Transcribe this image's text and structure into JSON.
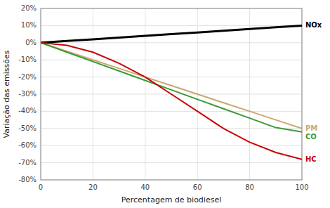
{
  "chart_data": {
    "type": "line",
    "xlabel": "Percentagem de biodiesel",
    "ylabel": "Variação das emissões",
    "x": [
      0,
      10,
      20,
      30,
      40,
      50,
      60,
      70,
      80,
      90,
      100
    ],
    "series": [
      {
        "name": "NOx",
        "color": "#000000",
        "values": [
          0,
          1,
          2,
          3,
          4,
          5,
          6,
          7,
          8,
          9,
          10
        ]
      },
      {
        "name": "PM",
        "color": "#C8A870",
        "values": [
          0,
          -5,
          -10,
          -15,
          -20,
          -25,
          -30,
          -35,
          -40,
          -45,
          -50
        ]
      },
      {
        "name": "CO",
        "color": "#3A9A3A",
        "values": [
          0,
          -5.5,
          -11,
          -16.5,
          -22,
          -27.5,
          -33,
          -38.5,
          -44,
          -49.5,
          -52
        ]
      },
      {
        "name": "HC",
        "color": "#CC0000",
        "values": [
          0,
          -1.5,
          -5.5,
          -12,
          -20,
          -30,
          -40,
          -50,
          -58,
          -64,
          -68
        ]
      }
    ],
    "xlim": [
      0,
      100
    ],
    "ylim": [
      -80,
      20
    ],
    "xticks": [
      0,
      20,
      40,
      60,
      80,
      100
    ],
    "yticks": [
      {
        "value": -80,
        "label": "-80%"
      },
      {
        "value": -70,
        "label": "-70%"
      },
      {
        "value": -60,
        "label": "-60%"
      },
      {
        "value": -50,
        "label": "-50%"
      },
      {
        "value": -40,
        "label": "-40%"
      },
      {
        "value": -30,
        "label": "-30%"
      },
      {
        "value": -20,
        "label": "-20%"
      },
      {
        "value": -10,
        "label": "-10%"
      },
      {
        "value": 0,
        "label": "0%"
      },
      {
        "value": 10,
        "label": "10%"
      },
      {
        "value": 20,
        "label": "20%"
      }
    ],
    "grid": true
  }
}
